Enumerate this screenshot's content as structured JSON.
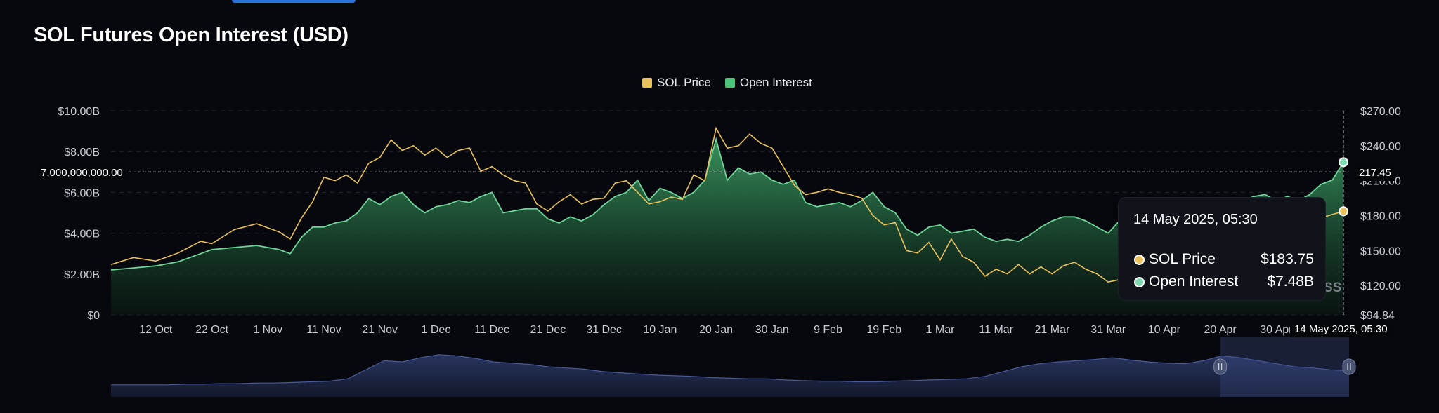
{
  "title": "SOL Futures Open Interest (USD)",
  "legend": [
    {
      "label": "SOL Price",
      "color": "#e9c15e"
    },
    {
      "label": "Open Interest",
      "color": "#4fc27a"
    }
  ],
  "tooltip": {
    "date": "14 May 2025, 05:30",
    "rows": [
      {
        "label": "SOL Price",
        "value": "$183.75",
        "dot_color": "#e9c15e"
      },
      {
        "label": "Open Interest",
        "value": "$7.48B",
        "dot_color": "#7fd8b0"
      }
    ]
  },
  "crosshair": {
    "left_label": "7,000,000,000.00",
    "right_label": "217.45",
    "bottom_label": "14 May 2025, 05:30"
  },
  "watermark": "SS",
  "chart_data": {
    "type": "line",
    "title": "SOL Futures Open Interest (USD)",
    "x_range": [
      0,
      221
    ],
    "x_ticks": [
      {
        "x": 8,
        "label": "12 Oct"
      },
      {
        "x": 18,
        "label": "22 Oct"
      },
      {
        "x": 28,
        "label": "1 Nov"
      },
      {
        "x": 38,
        "label": "11 Nov"
      },
      {
        "x": 48,
        "label": "21 Nov"
      },
      {
        "x": 58,
        "label": "1 Dec"
      },
      {
        "x": 68,
        "label": "11 Dec"
      },
      {
        "x": 78,
        "label": "21 Dec"
      },
      {
        "x": 88,
        "label": "31 Dec"
      },
      {
        "x": 98,
        "label": "10 Jan"
      },
      {
        "x": 108,
        "label": "20 Jan"
      },
      {
        "x": 118,
        "label": "30 Jan"
      },
      {
        "x": 128,
        "label": "9 Feb"
      },
      {
        "x": 138,
        "label": "19 Feb"
      },
      {
        "x": 148,
        "label": "1 Mar"
      },
      {
        "x": 158,
        "label": "11 Mar"
      },
      {
        "x": 168,
        "label": "21 Mar"
      },
      {
        "x": 178,
        "label": "31 Mar"
      },
      {
        "x": 188,
        "label": "10 Apr"
      },
      {
        "x": 198,
        "label": "20 Apr"
      },
      {
        "x": 208,
        "label": "30 Apr"
      }
    ],
    "y_left": {
      "min": 0,
      "max": 10,
      "unit": "B",
      "ticks": [
        {
          "v": 0,
          "label": "$0"
        },
        {
          "v": 2,
          "label": "$2.00B"
        },
        {
          "v": 4,
          "label": "$4.00B"
        },
        {
          "v": 6,
          "label": "$6.00B"
        },
        {
          "v": 8,
          "label": "$8.00B"
        },
        {
          "v": 10,
          "label": "$10.00B"
        }
      ]
    },
    "y_right": {
      "min": 94.84,
      "max": 270,
      "ticks": [
        {
          "v": 94.84,
          "label": "$94.84"
        },
        {
          "v": 120,
          "label": "$120.00"
        },
        {
          "v": 150,
          "label": "$150.00"
        },
        {
          "v": 180,
          "label": "$180.00"
        },
        {
          "v": 210,
          "label": "$210.00"
        },
        {
          "v": 240,
          "label": "$240.00"
        },
        {
          "v": 270,
          "label": "$270.00"
        }
      ]
    },
    "series": [
      {
        "name": "Open Interest",
        "axis": "left",
        "color": "#4fc27a",
        "points": [
          [
            0,
            2.2
          ],
          [
            4,
            2.3
          ],
          [
            8,
            2.4
          ],
          [
            12,
            2.6
          ],
          [
            16,
            3.0
          ],
          [
            18,
            3.2
          ],
          [
            22,
            3.3
          ],
          [
            26,
            3.4
          ],
          [
            30,
            3.2
          ],
          [
            32,
            3.0
          ],
          [
            34,
            3.8
          ],
          [
            36,
            4.3
          ],
          [
            38,
            4.3
          ],
          [
            40,
            4.5
          ],
          [
            42,
            4.6
          ],
          [
            44,
            5.0
          ],
          [
            46,
            5.7
          ],
          [
            48,
            5.4
          ],
          [
            50,
            5.8
          ],
          [
            52,
            6.0
          ],
          [
            54,
            5.4
          ],
          [
            56,
            5.0
          ],
          [
            58,
            5.3
          ],
          [
            60,
            5.4
          ],
          [
            62,
            5.6
          ],
          [
            64,
            5.5
          ],
          [
            66,
            5.8
          ],
          [
            68,
            6.0
          ],
          [
            70,
            5.0
          ],
          [
            72,
            5.1
          ],
          [
            74,
            5.2
          ],
          [
            76,
            5.2
          ],
          [
            78,
            4.7
          ],
          [
            80,
            4.5
          ],
          [
            82,
            4.8
          ],
          [
            84,
            4.6
          ],
          [
            86,
            4.9
          ],
          [
            88,
            5.4
          ],
          [
            90,
            5.8
          ],
          [
            92,
            6.0
          ],
          [
            94,
            6.6
          ],
          [
            96,
            5.6
          ],
          [
            98,
            6.2
          ],
          [
            100,
            6.0
          ],
          [
            102,
            5.7
          ],
          [
            104,
            6.0
          ],
          [
            106,
            6.6
          ],
          [
            108,
            8.6
          ],
          [
            110,
            6.6
          ],
          [
            112,
            7.2
          ],
          [
            114,
            6.9
          ],
          [
            116,
            7.0
          ],
          [
            118,
            6.6
          ],
          [
            120,
            6.4
          ],
          [
            122,
            6.6
          ],
          [
            124,
            5.5
          ],
          [
            126,
            5.3
          ],
          [
            128,
            5.4
          ],
          [
            130,
            5.5
          ],
          [
            132,
            5.3
          ],
          [
            134,
            5.6
          ],
          [
            136,
            6.0
          ],
          [
            138,
            5.3
          ],
          [
            140,
            5.0
          ],
          [
            142,
            4.2
          ],
          [
            144,
            3.9
          ],
          [
            146,
            4.3
          ],
          [
            148,
            4.4
          ],
          [
            150,
            4.0
          ],
          [
            152,
            4.1
          ],
          [
            154,
            4.2
          ],
          [
            156,
            3.8
          ],
          [
            158,
            3.6
          ],
          [
            160,
            3.7
          ],
          [
            162,
            3.6
          ],
          [
            164,
            3.9
          ],
          [
            166,
            4.3
          ],
          [
            168,
            4.6
          ],
          [
            170,
            4.8
          ],
          [
            172,
            4.8
          ],
          [
            174,
            4.6
          ],
          [
            176,
            4.3
          ],
          [
            178,
            4.0
          ],
          [
            180,
            4.6
          ],
          [
            182,
            4.8
          ],
          [
            184,
            4.4
          ],
          [
            186,
            4.3
          ],
          [
            188,
            4.0
          ],
          [
            190,
            4.3
          ],
          [
            192,
            4.8
          ],
          [
            194,
            4.9
          ],
          [
            196,
            5.0
          ],
          [
            198,
            5.2
          ],
          [
            200,
            5.3
          ],
          [
            202,
            5.6
          ],
          [
            204,
            5.8
          ],
          [
            206,
            5.9
          ],
          [
            208,
            5.6
          ],
          [
            210,
            5.8
          ],
          [
            212,
            5.6
          ],
          [
            214,
            5.9
          ],
          [
            216,
            6.4
          ],
          [
            218,
            6.6
          ],
          [
            220,
            7.48
          ]
        ]
      },
      {
        "name": "SOL Price",
        "axis": "right",
        "color": "#e9c15e",
        "points": [
          [
            0,
            138
          ],
          [
            4,
            144
          ],
          [
            8,
            141
          ],
          [
            12,
            148
          ],
          [
            16,
            158
          ],
          [
            18,
            156
          ],
          [
            22,
            168
          ],
          [
            26,
            173
          ],
          [
            30,
            166
          ],
          [
            32,
            160
          ],
          [
            34,
            178
          ],
          [
            36,
            192
          ],
          [
            38,
            213
          ],
          [
            40,
            210
          ],
          [
            42,
            215
          ],
          [
            44,
            208
          ],
          [
            46,
            225
          ],
          [
            48,
            230
          ],
          [
            50,
            245
          ],
          [
            52,
            236
          ],
          [
            54,
            240
          ],
          [
            56,
            232
          ],
          [
            58,
            238
          ],
          [
            60,
            230
          ],
          [
            62,
            236
          ],
          [
            64,
            238
          ],
          [
            66,
            218
          ],
          [
            68,
            222
          ],
          [
            70,
            215
          ],
          [
            72,
            210
          ],
          [
            74,
            208
          ],
          [
            76,
            190
          ],
          [
            78,
            184
          ],
          [
            80,
            192
          ],
          [
            82,
            198
          ],
          [
            84,
            190
          ],
          [
            86,
            194
          ],
          [
            88,
            195
          ],
          [
            90,
            208
          ],
          [
            92,
            210
          ],
          [
            94,
            200
          ],
          [
            96,
            190
          ],
          [
            98,
            192
          ],
          [
            100,
            196
          ],
          [
            102,
            194
          ],
          [
            104,
            215
          ],
          [
            106,
            210
          ],
          [
            108,
            255
          ],
          [
            110,
            238
          ],
          [
            112,
            240
          ],
          [
            114,
            250
          ],
          [
            116,
            242
          ],
          [
            118,
            238
          ],
          [
            120,
            222
          ],
          [
            122,
            206
          ],
          [
            124,
            198
          ],
          [
            126,
            200
          ],
          [
            128,
            203
          ],
          [
            130,
            200
          ],
          [
            132,
            198
          ],
          [
            134,
            195
          ],
          [
            136,
            180
          ],
          [
            138,
            172
          ],
          [
            140,
            174
          ],
          [
            142,
            150
          ],
          [
            144,
            148
          ],
          [
            146,
            157
          ],
          [
            148,
            142
          ],
          [
            150,
            160
          ],
          [
            152,
            145
          ],
          [
            154,
            140
          ],
          [
            156,
            128
          ],
          [
            158,
            134
          ],
          [
            160,
            130
          ],
          [
            162,
            138
          ],
          [
            164,
            130
          ],
          [
            166,
            136
          ],
          [
            168,
            130
          ],
          [
            170,
            137
          ],
          [
            172,
            140
          ],
          [
            174,
            134
          ],
          [
            176,
            130
          ],
          [
            178,
            123
          ],
          [
            180,
            125
          ],
          [
            182,
            120
          ],
          [
            184,
            116
          ],
          [
            186,
            118
          ],
          [
            188,
            125
          ],
          [
            190,
            130
          ],
          [
            192,
            135
          ],
          [
            194,
            138
          ],
          [
            196,
            142
          ],
          [
            198,
            145
          ],
          [
            200,
            148
          ],
          [
            202,
            150
          ],
          [
            204,
            155
          ],
          [
            206,
            165
          ],
          [
            208,
            172
          ],
          [
            210,
            176
          ],
          [
            212,
            175
          ],
          [
            214,
            177
          ],
          [
            216,
            178
          ],
          [
            218,
            181
          ],
          [
            220,
            183.75
          ]
        ]
      }
    ],
    "navigator": {
      "values": [
        2,
        2,
        2,
        2,
        2.1,
        2.1,
        2.2,
        2.2,
        2.3,
        2.3,
        2.4,
        2.5,
        2.6,
        3,
        4.5,
        6,
        5.8,
        6.5,
        7,
        6.8,
        6.4,
        5.8,
        5.6,
        5.4,
        5,
        4.8,
        4.6,
        4.2,
        4,
        3.8,
        3.6,
        3.5,
        3.4,
        3.2,
        3.1,
        3,
        3,
        2.8,
        2.7,
        2.6,
        2.6,
        2.5,
        2.5,
        2.6,
        2.7,
        2.8,
        2.9,
        3,
        3.4,
        4.2,
        5,
        5.5,
        5.8,
        6,
        6.2,
        6.5,
        6.1,
        5.8,
        5.6,
        5.5,
        6,
        6.8,
        6.5,
        6,
        5.5,
        5,
        4.8,
        4.5,
        4.3
      ],
      "selected_range": [
        198,
        221
      ]
    }
  }
}
